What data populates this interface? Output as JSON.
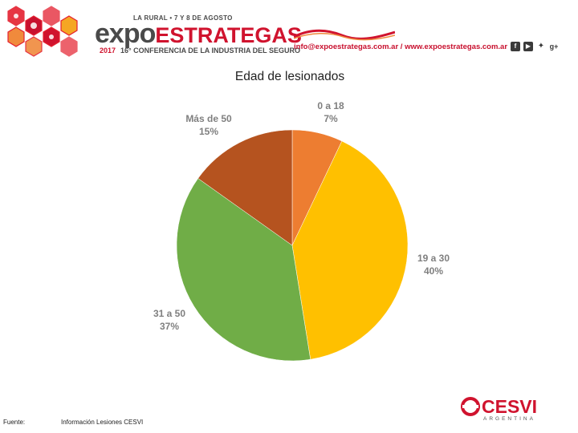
{
  "header": {
    "tagline": "LA RURAL • 7 Y 8 DE AGOSTO",
    "brand_part1": "expo",
    "brand_part2": "ESTRATEGAS",
    "year": "2017",
    "subtitle": "16° CONFERENCIA DE LA INDUSTRIA DEL SEGURO",
    "contact": "info@expoestrategas.com.ar / www.expoestrategas.com.ar",
    "social_icons": [
      "facebook-icon",
      "youtube-icon",
      "twitter-icon",
      "google-plus-icon"
    ],
    "accent_color": "#d0132e"
  },
  "chart_data": {
    "type": "pie",
    "title": "Edad de lesionados",
    "start_angle_deg": 0,
    "direction": "clockwise",
    "slices": [
      {
        "label": "0 a 18",
        "value": 7,
        "value_label": "7%",
        "color": "#ed7d31"
      },
      {
        "label": "19 a 30",
        "value": 40,
        "value_label": "40%",
        "color": "#ffc000"
      },
      {
        "label": "31 a 50",
        "value": 37,
        "value_label": "37%",
        "color": "#70ad47"
      },
      {
        "label": "Más de 50",
        "value": 15,
        "value_label": "15%",
        "color": "#b5531f"
      }
    ]
  },
  "footer": {
    "source_label": "Fuente:",
    "source_text": "Información Lesiones CESVI"
  },
  "logo": {
    "name": "CESVI",
    "sub": "ARGENTINA",
    "color": "#d0132e"
  }
}
